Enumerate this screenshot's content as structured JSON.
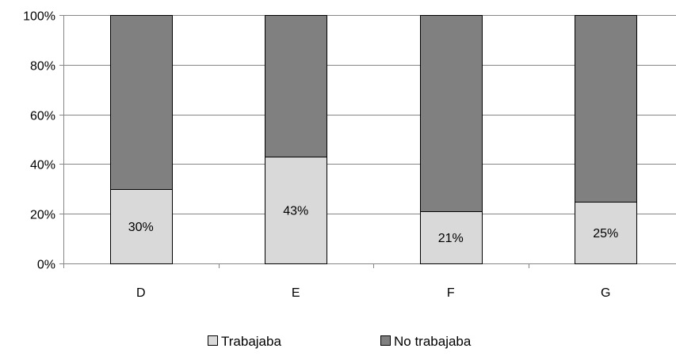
{
  "chart_data": {
    "type": "bar",
    "stacked": true,
    "categories": [
      "D",
      "E",
      "F",
      "G"
    ],
    "series": [
      {
        "name": "Trabajaba",
        "values": [
          30,
          43,
          21,
          25
        ],
        "labels": [
          "30%",
          "43%",
          "21%",
          "25%"
        ],
        "color": "#d9d9d9"
      },
      {
        "name": "No trabajaba",
        "values": [
          70,
          57,
          79,
          75
        ],
        "color": "#808080"
      }
    ],
    "ylim": [
      0,
      100
    ],
    "yticks": [
      0,
      20,
      40,
      60,
      80,
      100
    ],
    "ytick_labels": [
      "0%",
      "20%",
      "40%",
      "60%",
      "80%",
      "100%"
    ],
    "grid": true,
    "legend_position": "bottom"
  }
}
